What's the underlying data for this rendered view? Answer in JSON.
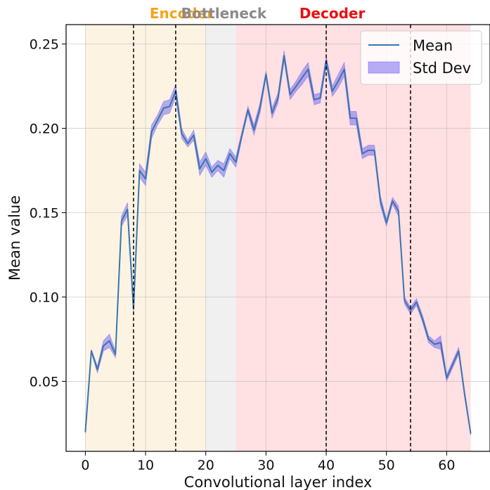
{
  "chart_data": {
    "type": "line",
    "xlabel": "Convolutional layer index",
    "ylabel": "Mean value",
    "xlim": [
      -3.2,
      67.2
    ],
    "ylim": [
      0.0085,
      0.2615
    ],
    "xticks": [
      0,
      10,
      20,
      30,
      40,
      50,
      60
    ],
    "xtick_labels": [
      "0",
      "10",
      "20",
      "30",
      "40",
      "50",
      "60"
    ],
    "yticks": [
      0.05,
      0.1,
      0.15,
      0.2,
      0.25
    ],
    "ytick_labels": [
      "0.05",
      "0.10",
      "0.15",
      "0.20",
      "0.25"
    ],
    "grid": true,
    "regions": [
      {
        "name": "Encoder",
        "start": 0,
        "end": 20,
        "fill": "#fdf3e2",
        "label_color": "#f5a31a"
      },
      {
        "name": "Bottleneck",
        "start": 20,
        "end": 25,
        "fill": "#f0f0f0",
        "label_color": "#8a8a8a"
      },
      {
        "name": "Decoder",
        "start": 25,
        "end": 64,
        "fill": "#ffe0e3",
        "label_color": "#e81010"
      }
    ],
    "region_label_x": [
      16,
      23,
      41
    ],
    "vlines": [
      8,
      15,
      40,
      54
    ],
    "vline_color": "#000000",
    "legend": {
      "position": "top-right",
      "entries": [
        "Mean",
        "Std Dev"
      ]
    },
    "mean_color": "#3a76ad",
    "std_color": "#7b6cf0",
    "x": [
      0,
      1,
      2,
      3,
      4,
      5,
      6,
      7,
      8,
      9,
      10,
      11,
      12,
      13,
      14,
      15,
      16,
      17,
      18,
      19,
      20,
      21,
      22,
      23,
      24,
      25,
      26,
      27,
      28,
      29,
      30,
      31,
      32,
      33,
      34,
      35,
      36,
      37,
      38,
      39,
      40,
      41,
      42,
      43,
      44,
      45,
      46,
      47,
      48,
      49,
      50,
      51,
      52,
      53,
      54,
      55,
      56,
      57,
      58,
      59,
      60,
      61,
      62,
      63,
      64
    ],
    "mean": [
      0.02,
      0.068,
      0.057,
      0.071,
      0.074,
      0.066,
      0.145,
      0.152,
      0.093,
      0.175,
      0.17,
      0.198,
      0.205,
      0.212,
      0.213,
      0.222,
      0.197,
      0.191,
      0.196,
      0.176,
      0.182,
      0.174,
      0.178,
      0.175,
      0.185,
      0.18,
      0.196,
      0.211,
      0.199,
      0.212,
      0.232,
      0.209,
      0.218,
      0.243,
      0.22,
      0.225,
      0.23,
      0.235,
      0.217,
      0.218,
      0.24,
      0.222,
      0.228,
      0.235,
      0.206,
      0.206,
      0.185,
      0.187,
      0.187,
      0.157,
      0.144,
      0.157,
      0.151,
      0.098,
      0.092,
      0.097,
      0.087,
      0.075,
      0.072,
      0.073,
      0.052,
      0.06,
      0.068,
      0.042,
      0.019
    ],
    "std": [
      0.001,
      0.001,
      0.002,
      0.003,
      0.004,
      0.002,
      0.003,
      0.004,
      0.002,
      0.004,
      0.004,
      0.004,
      0.003,
      0.004,
      0.004,
      0.004,
      0.003,
      0.002,
      0.003,
      0.004,
      0.004,
      0.003,
      0.003,
      0.004,
      0.003,
      0.003,
      0.002,
      0.002,
      0.003,
      0.003,
      0.002,
      0.003,
      0.003,
      0.003,
      0.003,
      0.003,
      0.004,
      0.004,
      0.003,
      0.003,
      0.003,
      0.003,
      0.004,
      0.004,
      0.004,
      0.004,
      0.003,
      0.003,
      0.003,
      0.003,
      0.002,
      0.002,
      0.003,
      0.002,
      0.002,
      0.002,
      0.002,
      0.002,
      0.002,
      0.004,
      0.002,
      0.002,
      0.002,
      0.002,
      0.001
    ]
  }
}
